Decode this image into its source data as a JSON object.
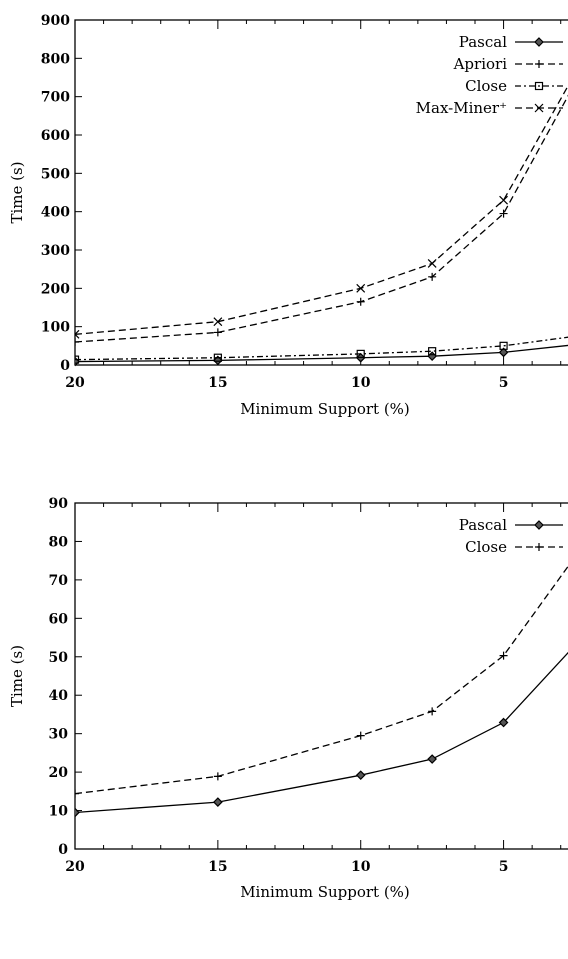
{
  "chart_data": [
    {
      "type": "line",
      "xlabel": "Minimum Support (%)",
      "ylabel": "Time (s)",
      "xlim": [
        20,
        2.5
      ],
      "ylim": [
        0,
        900
      ],
      "x_ticks": [
        "20",
        "15",
        "10",
        "5"
      ],
      "y_ticks": [
        "0",
        "100",
        "200",
        "300",
        "400",
        "500",
        "600",
        "700",
        "800",
        "900"
      ],
      "grid": false,
      "legend": "top-right",
      "series": [
        {
          "name": "Pascal",
          "marker": "diamond",
          "dash": "solid",
          "x": [
            20,
            15,
            10,
            7.5,
            5,
            2.5
          ],
          "y": [
            9,
            12,
            19,
            23,
            33,
            53
          ]
        },
        {
          "name": "Apriori",
          "marker": "plus",
          "dash": "dashed",
          "x": [
            20,
            15,
            10,
            7.5,
            5,
            2.5
          ],
          "y": [
            60,
            85,
            165,
            230,
            395,
            735
          ]
        },
        {
          "name": "Close",
          "marker": "square",
          "dash": "dashdot",
          "x": [
            20,
            15,
            10,
            7.5,
            5,
            2.5
          ],
          "y": [
            14,
            19,
            29,
            36,
            50,
            75
          ]
        },
        {
          "name": "Max-Miner⁺",
          "marker": "cross",
          "dash": "dashed",
          "x": [
            20,
            15,
            10,
            7.5,
            5,
            2.5
          ],
          "y": [
            80,
            113,
            200,
            265,
            430,
            760
          ]
        }
      ]
    },
    {
      "type": "line",
      "xlabel": "Minimum Support (%)",
      "ylabel": "Time (s)",
      "xlim": [
        20,
        2.5
      ],
      "ylim": [
        0,
        90
      ],
      "x_ticks": [
        "20",
        "15",
        "10",
        "5"
      ],
      "y_ticks": [
        "0",
        "10",
        "20",
        "30",
        "40",
        "50",
        "60",
        "70",
        "80",
        "90"
      ],
      "grid": false,
      "legend": "top-right",
      "series": [
        {
          "name": "Pascal",
          "marker": "diamond",
          "dash": "solid",
          "x": [
            20,
            15,
            10,
            7.5,
            5,
            2.5
          ],
          "y": [
            9.5,
            12.2,
            19.2,
            23.4,
            32.9,
            53
          ]
        },
        {
          "name": "Close",
          "marker": "plus",
          "dash": "dashed",
          "x": [
            20,
            15,
            10,
            7.5,
            5,
            2.5
          ],
          "y": [
            14.4,
            18.9,
            29.5,
            35.8,
            50.3,
            76
          ]
        }
      ]
    }
  ]
}
